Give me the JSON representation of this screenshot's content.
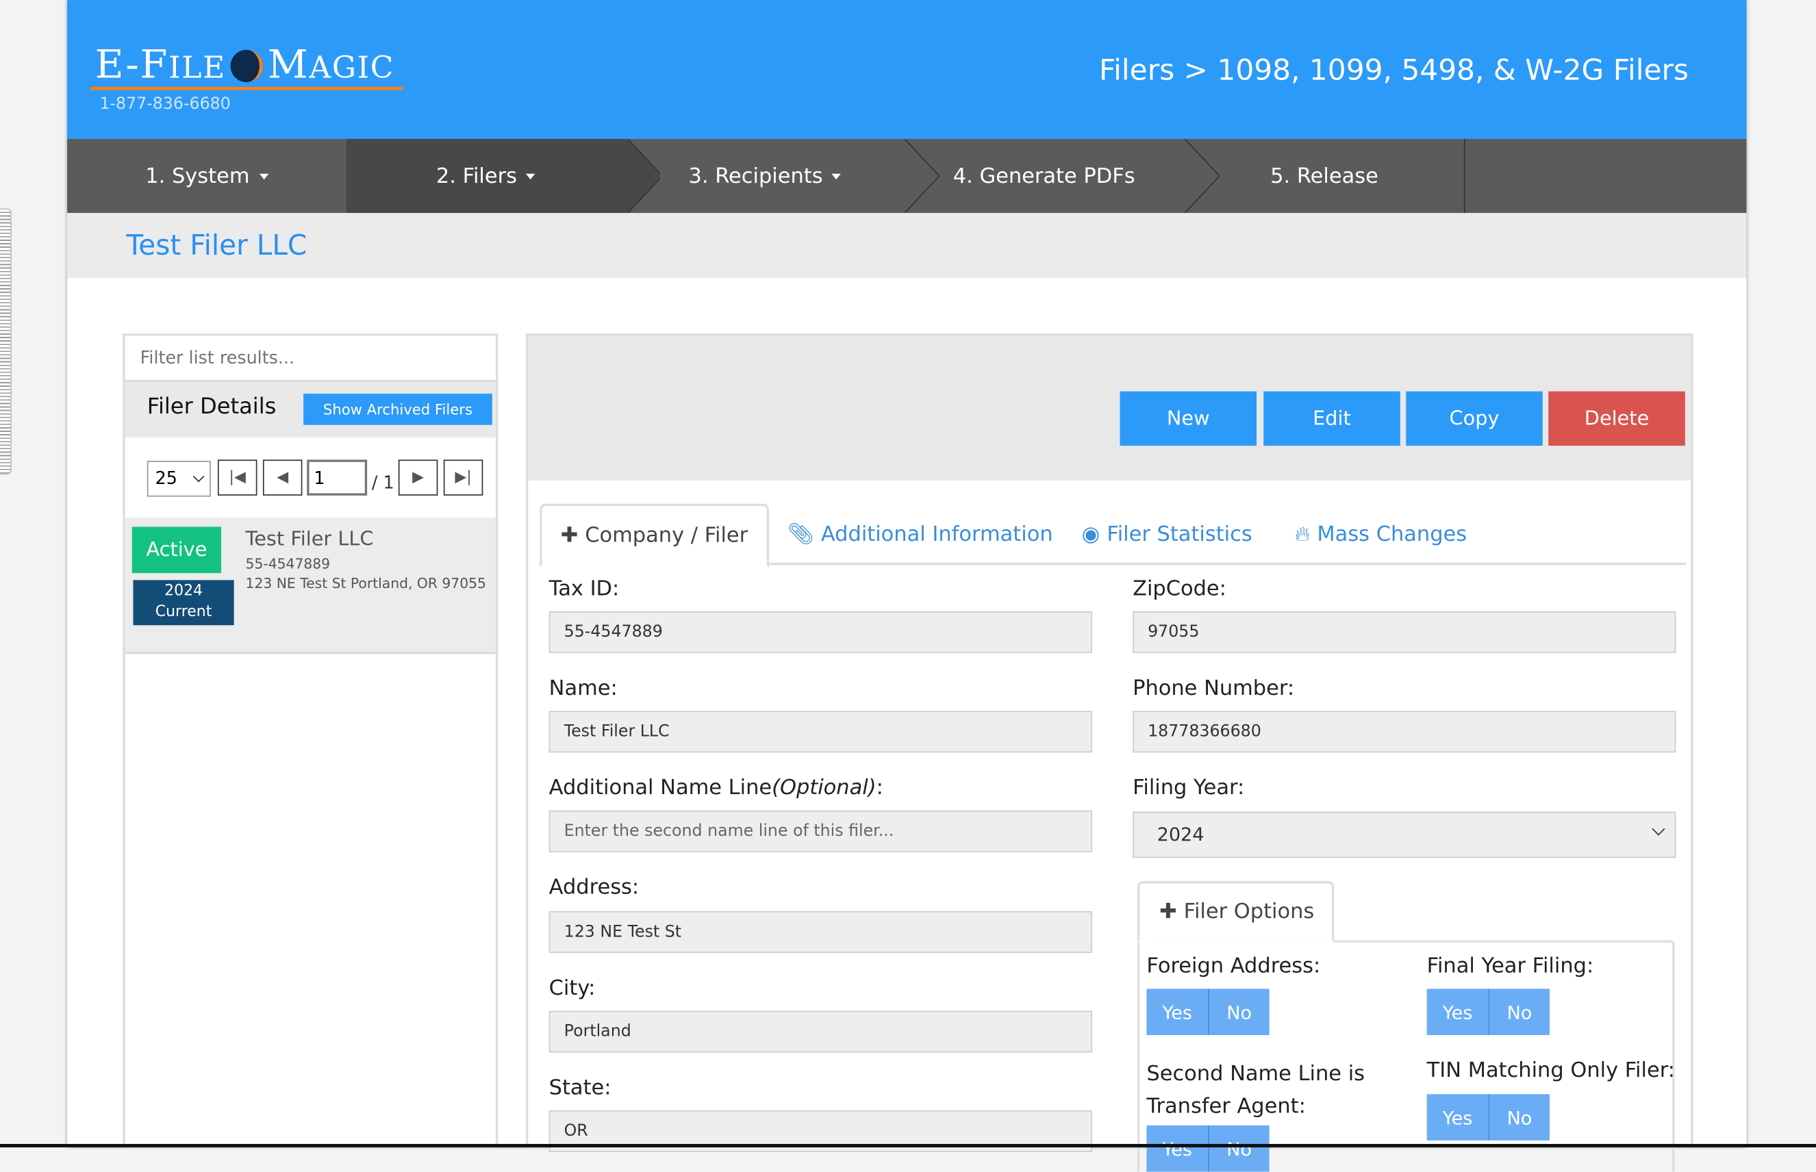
{
  "header": {
    "logo_text": "E-FILE MAGIC",
    "phone": "1-877-836-6680",
    "breadcrumb": "Filers > 1098, 1099, 5498, & W-2G Filers",
    "color": "#2b9af8"
  },
  "nav": {
    "items": [
      {
        "label": "1. System",
        "dropdown": true
      },
      {
        "label": "2. Filers",
        "dropdown": true,
        "active": true
      },
      {
        "label": "3. Recipients",
        "dropdown": true
      },
      {
        "label": "4. Generate PDFs"
      },
      {
        "label": "5. Release"
      }
    ]
  },
  "subheader": {
    "title": "Test Filer LLC"
  },
  "left_panel": {
    "filter_placeholder": "Filter list results...",
    "title": "Filer Details",
    "archived_button": "Show Archived Filers",
    "page_size": "25",
    "page": "1",
    "page_of": "/ 1",
    "items": [
      {
        "status": "Active",
        "year": "2024",
        "year_label": "Current",
        "name": "Test Filer LLC",
        "tin": "55-4547889",
        "address": "123 NE Test St Portland, OR 97055"
      }
    ]
  },
  "toolbar": {
    "new": "New",
    "edit": "Edit",
    "copy": "Copy",
    "delete": "Delete",
    "delete_color": "#d9534f"
  },
  "tabs": [
    {
      "label": "Company / Filer",
      "icon": "plus-icon",
      "active": true
    },
    {
      "label": "Additional Information",
      "icon": "paperclip-icon"
    },
    {
      "label": "Filer Statistics",
      "icon": "eye-icon"
    },
    {
      "label": "Mass Changes",
      "icon": "fire-icon"
    }
  ],
  "form": {
    "tax_id": {
      "label": "Tax ID:",
      "value": "55-4547889"
    },
    "name": {
      "label": "Name:",
      "value": "Test Filer LLC"
    },
    "additional_name": {
      "label": "Additional Name Line",
      "optional": "(Optional)",
      "colon": ":",
      "value": "",
      "placeholder": "Enter the second name line of this filer..."
    },
    "address": {
      "label": "Address:",
      "value": "123 NE Test St"
    },
    "city": {
      "label": "City:",
      "value": "Portland"
    },
    "state": {
      "label": "State:",
      "value": "OR"
    },
    "zip": {
      "label": "ZipCode:",
      "value": "97055"
    },
    "phone": {
      "label": "Phone Number:",
      "value": "18778366680"
    },
    "filing_year": {
      "label": "Filing Year:",
      "value": "2024"
    }
  },
  "filer_options": {
    "tab": "Filer Options",
    "yes": "Yes",
    "no": "No",
    "foreign_address": "Foreign Address:",
    "final_year": "Final Year Filing:",
    "second_name_1": "Second Name Line is",
    "second_name_2": "Transfer Agent:",
    "tin_matching": "TIN Matching Only Filer:"
  }
}
